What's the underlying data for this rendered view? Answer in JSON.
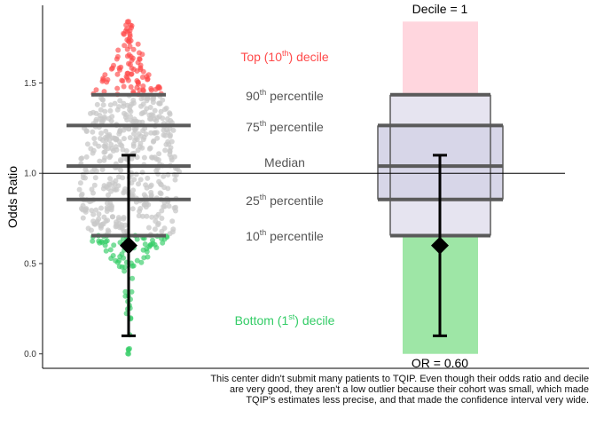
{
  "chart_data": {
    "type": "scatter",
    "ylabel": "Odds Ratio",
    "yticks": [
      0.0,
      0.5,
      1.0,
      1.5
    ],
    "ytick_labels": [
      "0.0",
      "0.5",
      "1.0",
      "1.5"
    ],
    "ylim": [
      -0.08,
      1.93
    ],
    "reference_line": 1.0,
    "percentiles": {
      "p10": 0.655,
      "p25": 0.855,
      "median": 1.04,
      "p75": 1.265,
      "p90": 1.435,
      "max": 1.84
    },
    "center_estimate": {
      "or": 0.6,
      "ci_low": 0.1,
      "ci_high": 1.1,
      "label": "OR = 0.60",
      "decile_label": "Decile = 1"
    },
    "labels": {
      "top_decile": {
        "pre": "Top (10",
        "sup": "th",
        "post": ") decile"
      },
      "p90": {
        "pre": "90",
        "sup": "th",
        "post": " percentile"
      },
      "p75": {
        "pre": "75",
        "sup": "th",
        "post": " percentile"
      },
      "median": {
        "pre": "Median",
        "sup": "",
        "post": ""
      },
      "p25": {
        "pre": "25",
        "sup": "th",
        "post": " percentile"
      },
      "p10": {
        "pre": "10",
        "sup": "th",
        "post": " percentile"
      },
      "bottom_decile": {
        "pre": "Bottom (1",
        "sup": "st",
        "post": ") decile"
      }
    }
  },
  "colors": {
    "top_decile": "#ff4a4a",
    "bottom_decile": "#33cc66",
    "middle_points": "#c8c8c8",
    "percentile_bar": "#5a5a5a",
    "label_gray": "#555555",
    "top_fill": "#ffd6de",
    "bottom_fill": "#9ee6a6",
    "outer_box": "#e6e4f0",
    "inner_box": "#d7d6e8"
  },
  "caption": "This center didn't submit many patients to TQIP. Even though their odds ratio and decile are very good, they aren't a low outlier because their cohort was small, which made TQIP's estimates less precise, and that made the confidence interval very wide."
}
